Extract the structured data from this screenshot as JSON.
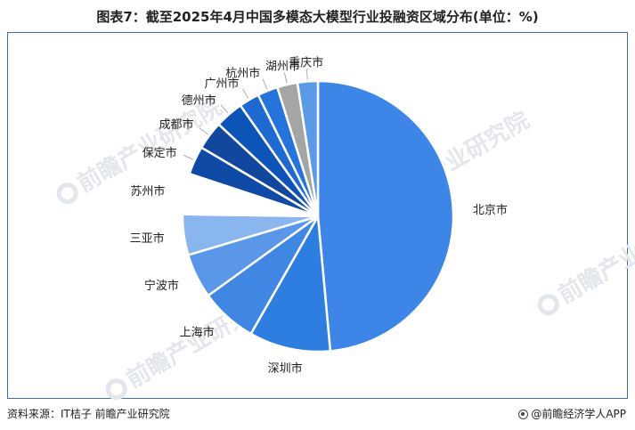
{
  "title": "图表7：截至2025年4月中国多模态大模型行业投融资区域分布(单位：%)",
  "footer": {
    "source": "资料来源：IT桔子 前瞻产业研究院",
    "brand": "@前瞻经济学人APP"
  },
  "watermark": "前瞻产业研究院",
  "chart_data": {
    "type": "pie",
    "title": "图表7：截至2025年4月中国多模态大模型行业投融资区域分布(单位：%)",
    "start_angle_deg": 0,
    "direction": "clockwise",
    "slices": [
      {
        "label": "北京市",
        "value": 50.0,
        "color": "#3d86e8"
      },
      {
        "label": "深圳市",
        "value": 10.0,
        "color": "#2e7de0"
      },
      {
        "label": "上海市",
        "value": 7.0,
        "color": "#3f87e3"
      },
      {
        "label": "宁波市",
        "value": 5.5,
        "color": "#5a97e8"
      },
      {
        "label": "三亚市",
        "value": 5.0,
        "color": "#8ab6f0"
      },
      {
        "label": "苏州市",
        "value": 5.0,
        "color": "#ffffff"
      },
      {
        "label": "保定市",
        "value": 3.5,
        "color": "#0e4aa6"
      },
      {
        "label": "成都市",
        "value": 3.5,
        "color": "#11489e"
      },
      {
        "label": "德州市",
        "value": 3.5,
        "color": "#0d54b8"
      },
      {
        "label": "广州市",
        "value": 2.5,
        "color": "#1f6ad0"
      },
      {
        "label": "杭州市",
        "value": 2.5,
        "color": "#2474dc"
      },
      {
        "label": "湖州市",
        "value": 2.5,
        "color": "#a5a5a5"
      },
      {
        "label": "重庆市",
        "value": 2.5,
        "color": "#5b9ae6"
      }
    ]
  }
}
